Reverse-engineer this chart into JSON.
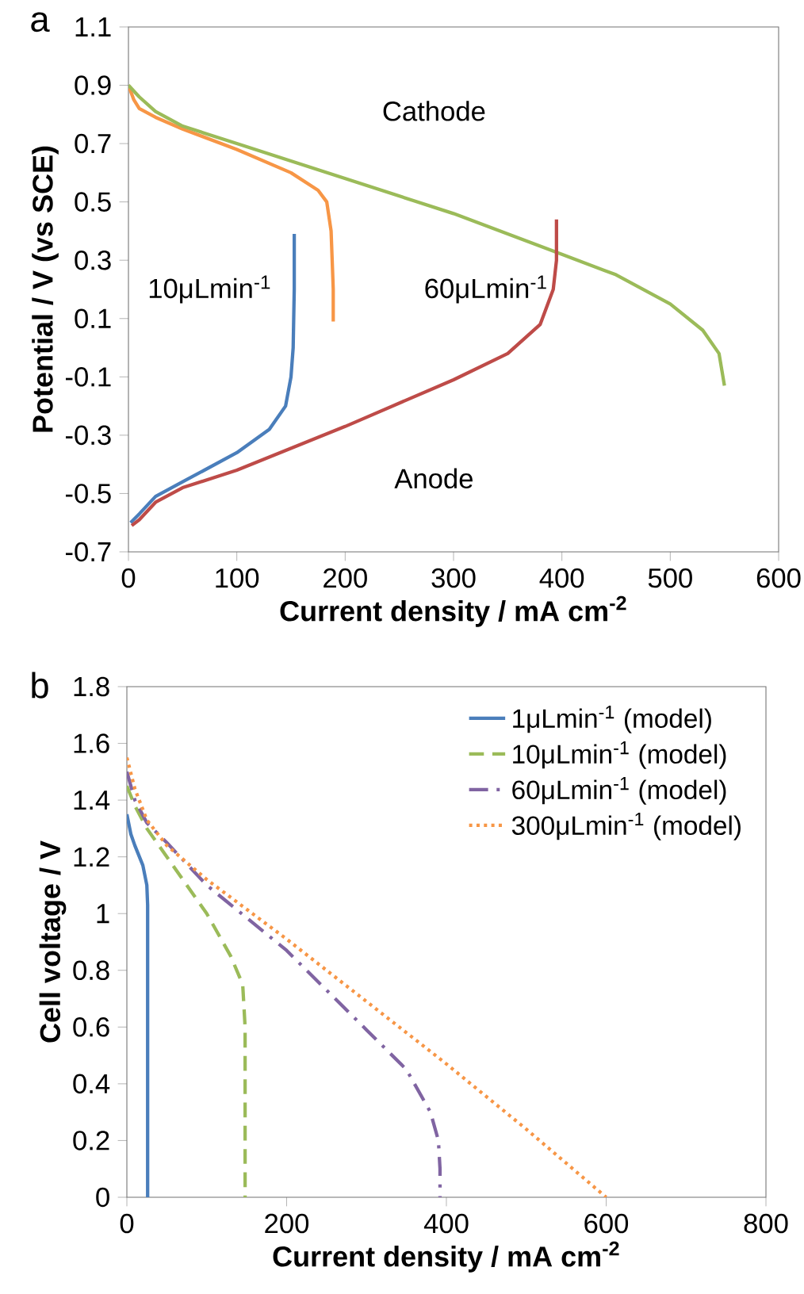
{
  "chart_data": [
    {
      "type": "line",
      "title": "a",
      "xlabel": "Current density / mA cm$^{-2}$",
      "ylabel": "Potential / V (vs SCE)",
      "xlim": [
        0,
        600
      ],
      "xticks": [
        0,
        100,
        200,
        300,
        400,
        500,
        600
      ],
      "ylim": [
        -0.7,
        1.1
      ],
      "yticks": [
        -0.7,
        -0.5,
        -0.3,
        -0.1,
        0.1,
        0.3,
        0.5,
        0.7,
        0.9,
        1.1
      ],
      "grid": false,
      "legend": false,
      "marker": "none",
      "annotations": [
        "Cathode",
        "Anode",
        "10μLmin$^{-1}$",
        "60μLmin$^{-1}$"
      ],
      "series": [
        {
          "color": "#f79646",
          "line_style": "solid",
          "x": [
            0,
            5,
            10,
            25,
            50,
            100,
            150,
            175,
            183,
            187,
            188,
            189,
            189
          ],
          "values": [
            0.9,
            0.85,
            0.82,
            0.79,
            0.75,
            0.68,
            0.6,
            0.54,
            0.5,
            0.4,
            0.3,
            0.2,
            0.09
          ]
        },
        {
          "color": "#9bbb59",
          "line_style": "solid",
          "x": [
            0,
            10,
            25,
            50,
            100,
            200,
            300,
            400,
            450,
            500,
            530,
            545,
            550
          ],
          "values": [
            0.9,
            0.86,
            0.81,
            0.76,
            0.7,
            0.58,
            0.46,
            0.32,
            0.25,
            0.15,
            0.06,
            -0.02,
            -0.13
          ]
        },
        {
          "color": "#4a7ebb",
          "line_style": "solid",
          "x": [
            2,
            10,
            25,
            50,
            100,
            130,
            145,
            150,
            152,
            153,
            153
          ],
          "values": [
            -0.6,
            -0.57,
            -0.51,
            -0.46,
            -0.36,
            -0.28,
            -0.2,
            -0.1,
            0.0,
            0.2,
            0.39
          ]
        },
        {
          "color": "#be4b48",
          "line_style": "solid",
          "x": [
            3,
            10,
            25,
            50,
            100,
            200,
            300,
            350,
            380,
            392,
            395,
            395
          ],
          "values": [
            -0.61,
            -0.59,
            -0.53,
            -0.48,
            -0.42,
            -0.27,
            -0.11,
            -0.02,
            0.08,
            0.2,
            0.3,
            0.44
          ]
        }
      ]
    },
    {
      "type": "line",
      "title": "b",
      "xlabel": "Current density / mA cm$^{-2}$",
      "ylabel": "Cell voltage / V",
      "xlim": [
        0,
        800
      ],
      "xticks": [
        0,
        200,
        400,
        600,
        800
      ],
      "ylim": [
        0,
        1.8
      ],
      "yticks": [
        0,
        0.2,
        0.4,
        0.6,
        0.8,
        1,
        1.2,
        1.4,
        1.6,
        1.8
      ],
      "grid": false,
      "legend": "top right",
      "marker": "none",
      "series": [
        {
          "name": "1μLmin$^{-1}$ (model)",
          "color": "#4a7ebb",
          "line_style": "solid",
          "x": [
            0,
            5,
            10,
            20,
            25,
            26,
            26
          ],
          "values": [
            1.35,
            1.28,
            1.24,
            1.17,
            1.1,
            1.03,
            0.0
          ]
        },
        {
          "name": "10μLmin$^{-1}$ (model)",
          "color": "#9bbb59",
          "line_style": "dashed",
          "x": [
            0,
            10,
            25,
            50,
            100,
            130,
            145,
            148,
            148
          ],
          "values": [
            1.45,
            1.38,
            1.3,
            1.2,
            1.0,
            0.85,
            0.75,
            0.6,
            0.0
          ]
        },
        {
          "name": "60μLmin$^{-1}$ (model)",
          "color": "#8064a2",
          "line_style": "dashdot",
          "x": [
            0,
            10,
            25,
            50,
            100,
            200,
            300,
            350,
            380,
            390,
            392,
            392
          ],
          "values": [
            1.5,
            1.4,
            1.32,
            1.25,
            1.1,
            0.87,
            0.59,
            0.45,
            0.3,
            0.2,
            0.1,
            0.0
          ]
        },
        {
          "name": "300μLmin$^{-1}$ (model)",
          "color": "#f79646",
          "line_style": "dotted",
          "x": [
            0,
            10,
            25,
            50,
            100,
            200,
            300,
            400,
            500,
            600
          ],
          "values": [
            1.55,
            1.44,
            1.33,
            1.24,
            1.12,
            0.91,
            0.69,
            0.47,
            0.24,
            0.0
          ]
        }
      ]
    }
  ]
}
